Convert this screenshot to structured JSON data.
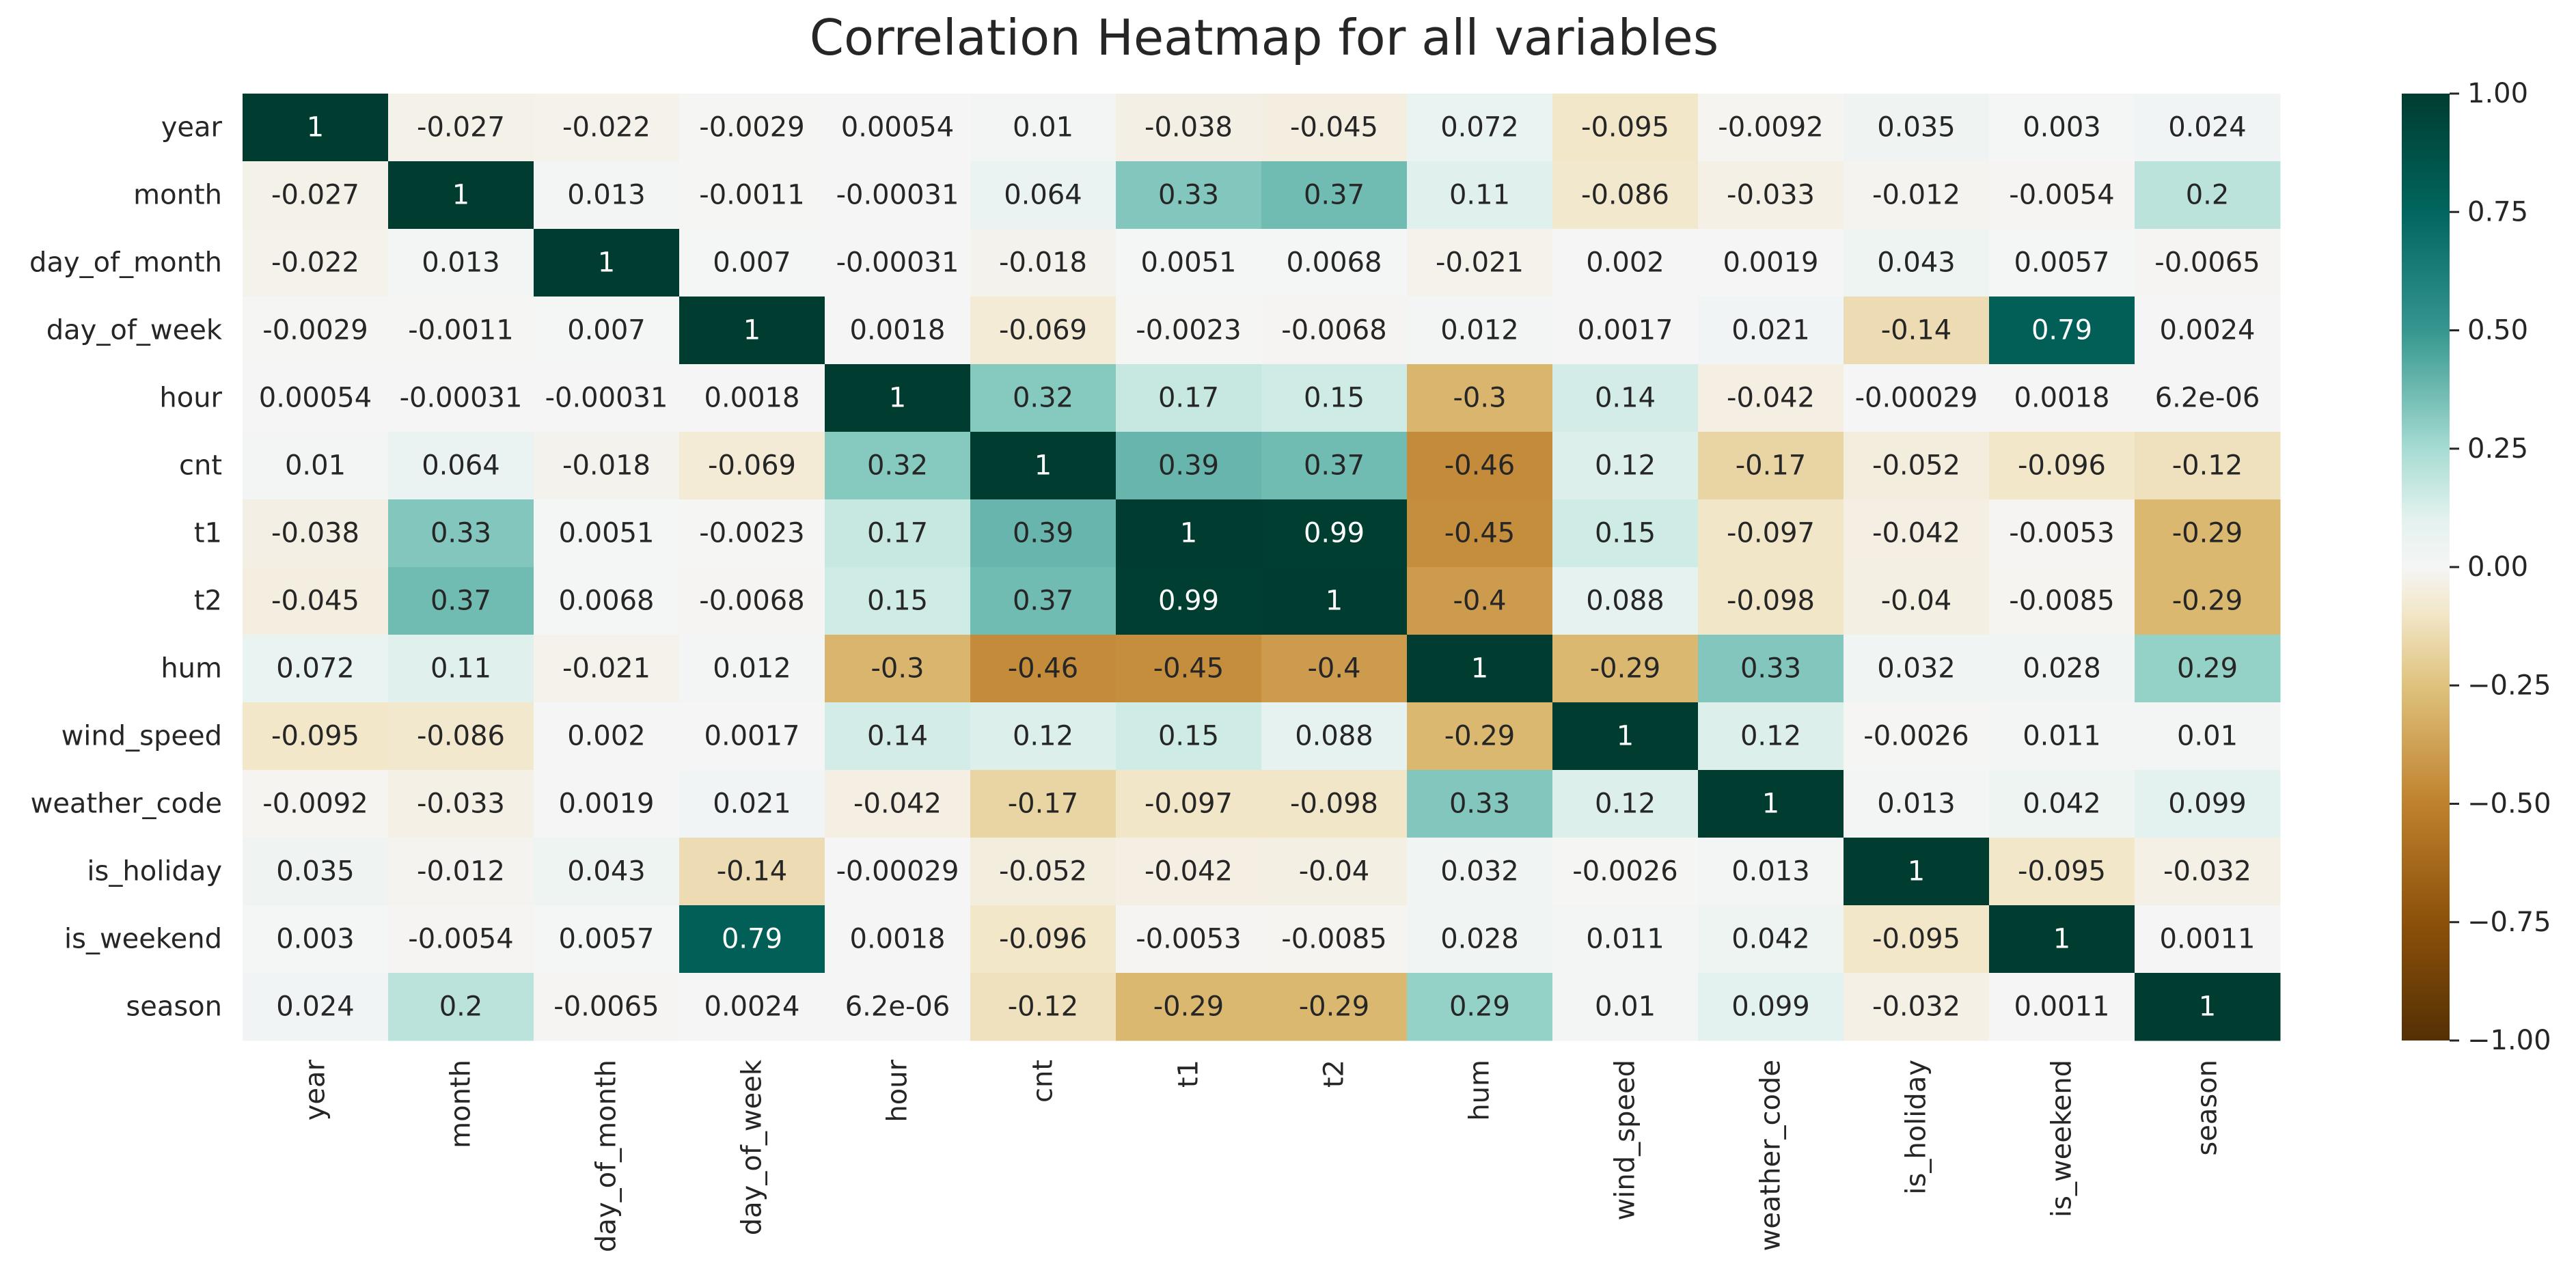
{
  "chart_data": {
    "type": "heatmap",
    "title": "Correlation Heatmap for all variables",
    "xlabel": "",
    "ylabel": "",
    "colormap": "BrBG",
    "vmin": -1.0,
    "vmax": 1.0,
    "variables": [
      "year",
      "month",
      "day_of_month",
      "day_of_week",
      "hour",
      "cnt",
      "t1",
      "t2",
      "hum",
      "wind_speed",
      "weather_code",
      "is_holiday",
      "is_weekend",
      "season"
    ],
    "values": [
      [
        1,
        -0.027,
        -0.022,
        -0.0029,
        0.00054,
        0.01,
        -0.038,
        -0.045,
        0.072,
        -0.095,
        -0.0092,
        0.035,
        0.003,
        0.024
      ],
      [
        -0.027,
        1,
        0.013,
        -0.0011,
        -0.00031,
        0.064,
        0.33,
        0.37,
        0.11,
        -0.086,
        -0.033,
        -0.012,
        -0.0054,
        0.2
      ],
      [
        -0.022,
        0.013,
        1,
        0.007,
        -0.00031,
        -0.018,
        0.0051,
        0.0068,
        -0.021,
        0.002,
        0.0019,
        0.043,
        0.0057,
        -0.0065
      ],
      [
        -0.0029,
        -0.0011,
        0.007,
        1,
        0.0018,
        -0.069,
        -0.0023,
        -0.0068,
        0.012,
        0.0017,
        0.021,
        -0.14,
        0.79,
        0.0024
      ],
      [
        0.00054,
        -0.00031,
        -0.00031,
        0.0018,
        1,
        0.32,
        0.17,
        0.15,
        -0.3,
        0.14,
        -0.042,
        -0.00029,
        0.0018,
        6.2e-06
      ],
      [
        0.01,
        0.064,
        -0.018,
        -0.069,
        0.32,
        1,
        0.39,
        0.37,
        -0.46,
        0.12,
        -0.17,
        -0.052,
        -0.096,
        -0.12
      ],
      [
        -0.038,
        0.33,
        0.0051,
        -0.0023,
        0.17,
        0.39,
        1,
        0.99,
        -0.45,
        0.15,
        -0.097,
        -0.042,
        -0.0053,
        -0.29
      ],
      [
        -0.045,
        0.37,
        0.0068,
        -0.0068,
        0.15,
        0.37,
        0.99,
        1,
        -0.4,
        0.088,
        -0.098,
        -0.04,
        -0.0085,
        -0.29
      ],
      [
        0.072,
        0.11,
        -0.021,
        0.012,
        -0.3,
        -0.46,
        -0.45,
        -0.4,
        1,
        -0.29,
        0.33,
        0.032,
        0.028,
        0.29
      ],
      [
        -0.095,
        -0.086,
        0.002,
        0.0017,
        0.14,
        0.12,
        0.15,
        0.088,
        -0.29,
        1,
        0.12,
        -0.0026,
        0.011,
        0.01
      ],
      [
        -0.0092,
        -0.033,
        0.0019,
        0.021,
        -0.042,
        -0.17,
        -0.097,
        -0.098,
        0.33,
        0.12,
        1,
        0.013,
        0.042,
        0.099
      ],
      [
        0.035,
        -0.012,
        0.043,
        -0.14,
        -0.00029,
        -0.052,
        -0.042,
        -0.04,
        0.032,
        -0.0026,
        0.013,
        1,
        -0.095,
        -0.032
      ],
      [
        0.003,
        -0.0054,
        0.0057,
        0.79,
        0.0018,
        -0.096,
        -0.0053,
        -0.0085,
        0.028,
        0.011,
        0.042,
        -0.095,
        1,
        0.0011
      ],
      [
        0.024,
        0.2,
        -0.0065,
        0.0024,
        6.2e-06,
        -0.12,
        -0.29,
        -0.29,
        0.29,
        0.01,
        0.099,
        -0.032,
        0.0011,
        1
      ]
    ],
    "labels": [
      [
        "1",
        "-0.027",
        "-0.022",
        "-0.0029",
        "0.00054",
        "0.01",
        "-0.038",
        "-0.045",
        "0.072",
        "-0.095",
        "-0.0092",
        "0.035",
        "0.003",
        "0.024"
      ],
      [
        "-0.027",
        "1",
        "0.013",
        "-0.0011",
        "-0.00031",
        "0.064",
        "0.33",
        "0.37",
        "0.11",
        "-0.086",
        "-0.033",
        "-0.012",
        "-0.0054",
        "0.2"
      ],
      [
        "-0.022",
        "0.013",
        "1",
        "0.007",
        "-0.00031",
        "-0.018",
        "0.0051",
        "0.0068",
        "-0.021",
        "0.002",
        "0.0019",
        "0.043",
        "0.0057",
        "-0.0065"
      ],
      [
        "-0.0029",
        "-0.0011",
        "0.007",
        "1",
        "0.0018",
        "-0.069",
        "-0.0023",
        "-0.0068",
        "0.012",
        "0.0017",
        "0.021",
        "-0.14",
        "0.79",
        "0.0024"
      ],
      [
        "0.00054",
        "-0.00031",
        "-0.00031",
        "0.0018",
        "1",
        "0.32",
        "0.17",
        "0.15",
        "-0.3",
        "0.14",
        "-0.042",
        "-0.00029",
        "0.0018",
        "6.2e-06"
      ],
      [
        "0.01",
        "0.064",
        "-0.018",
        "-0.069",
        "0.32",
        "1",
        "0.39",
        "0.37",
        "-0.46",
        "0.12",
        "-0.17",
        "-0.052",
        "-0.096",
        "-0.12"
      ],
      [
        "-0.038",
        "0.33",
        "0.0051",
        "-0.0023",
        "0.17",
        "0.39",
        "1",
        "0.99",
        "-0.45",
        "0.15",
        "-0.097",
        "-0.042",
        "-0.0053",
        "-0.29"
      ],
      [
        "-0.045",
        "0.37",
        "0.0068",
        "-0.0068",
        "0.15",
        "0.37",
        "0.99",
        "1",
        "-0.4",
        "0.088",
        "-0.098",
        "-0.04",
        "-0.0085",
        "-0.29"
      ],
      [
        "0.072",
        "0.11",
        "-0.021",
        "0.012",
        "-0.3",
        "-0.46",
        "-0.45",
        "-0.4",
        "1",
        "-0.29",
        "0.33",
        "0.032",
        "0.028",
        "0.29"
      ],
      [
        "-0.095",
        "-0.086",
        "0.002",
        "0.0017",
        "0.14",
        "0.12",
        "0.15",
        "0.088",
        "-0.29",
        "1",
        "0.12",
        "-0.0026",
        "0.011",
        "0.01"
      ],
      [
        "-0.0092",
        "-0.033",
        "0.0019",
        "0.021",
        "-0.042",
        "-0.17",
        "-0.097",
        "-0.098",
        "0.33",
        "0.12",
        "1",
        "0.013",
        "0.042",
        "0.099"
      ],
      [
        "0.035",
        "-0.012",
        "0.043",
        "-0.14",
        "-0.00029",
        "-0.052",
        "-0.042",
        "-0.04",
        "0.032",
        "-0.0026",
        "0.013",
        "1",
        "-0.095",
        "-0.032"
      ],
      [
        "0.003",
        "-0.0054",
        "0.0057",
        "0.79",
        "0.0018",
        "-0.096",
        "-0.0053",
        "-0.0085",
        "0.028",
        "0.011",
        "0.042",
        "-0.095",
        "1",
        "0.0011"
      ],
      [
        "0.024",
        "0.2",
        "-0.0065",
        "0.0024",
        "6.2e-06",
        "-0.12",
        "-0.29",
        "-0.29",
        "0.29",
        "0.01",
        "0.099",
        "-0.032",
        "0.0011",
        "1"
      ]
    ],
    "colorbar": {
      "ticks": [
        1.0,
        0.75,
        0.5,
        0.25,
        0.0,
        -0.25,
        -0.5,
        -0.75,
        -1.0
      ],
      "tick_labels": [
        "1.00",
        "0.75",
        "0.50",
        "0.25",
        "0.00",
        "−0.25",
        "−0.50",
        "−0.75",
        "−1.00"
      ]
    },
    "colorscale_stops": [
      {
        "v": -1.0,
        "color": "#543005"
      },
      {
        "v": -0.75,
        "color": "#8c510a"
      },
      {
        "v": -0.5,
        "color": "#bf812d"
      },
      {
        "v": -0.25,
        "color": "#dfc27d"
      },
      {
        "v": -0.1,
        "color": "#f2e6c7"
      },
      {
        "v": 0.0,
        "color": "#f5f5f5"
      },
      {
        "v": 0.1,
        "color": "#e4f2ef"
      },
      {
        "v": 0.25,
        "color": "#a6dcd2"
      },
      {
        "v": 0.5,
        "color": "#35978f"
      },
      {
        "v": 0.75,
        "color": "#01665e"
      },
      {
        "v": 1.0,
        "color": "#003c30"
      }
    ]
  }
}
